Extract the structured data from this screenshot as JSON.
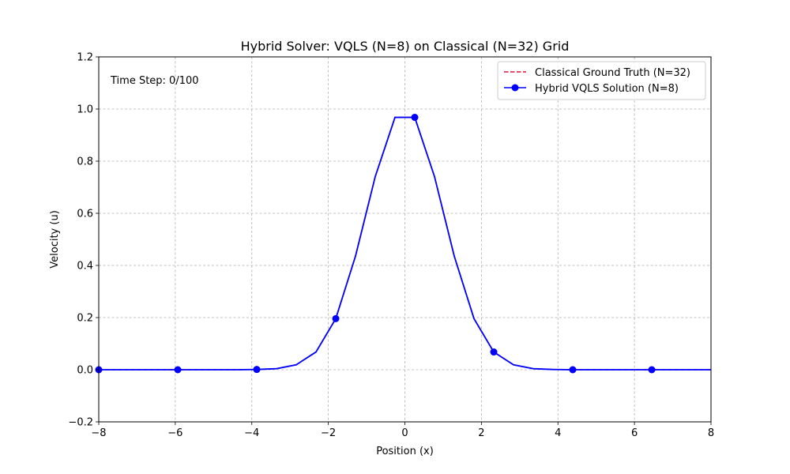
{
  "chart_data": {
    "type": "line",
    "title": "Hybrid Solver: VQLS (N=8) on Classical (N=32) Grid",
    "xlabel": "Position (x)",
    "ylabel": "Velocity (u)",
    "xlim": [
      -8,
      8
    ],
    "ylim": [
      -0.2,
      1.2
    ],
    "xticks": [
      -8,
      -6,
      -4,
      -2,
      0,
      2,
      4,
      6,
      8
    ],
    "xtick_labels": [
      "−8",
      "−6",
      "−4",
      "−2",
      "0",
      "2",
      "4",
      "6",
      "8"
    ],
    "yticks": [
      -0.2,
      0.0,
      0.2,
      0.4,
      0.6,
      0.8,
      1.0,
      1.2
    ],
    "ytick_labels": [
      "−0.2",
      "0.0",
      "0.2",
      "0.4",
      "0.6",
      "0.8",
      "1.0",
      "1.2"
    ],
    "grid": true,
    "legend_position": "top-right",
    "annotation": "Time Step: 0/100",
    "series": [
      {
        "name": "Classical Ground Truth (N=32)",
        "color": "#dc143c",
        "style": "dashed",
        "x": [
          -8.0,
          -7.484,
          -6.968,
          -6.452,
          -5.935,
          -5.419,
          -4.903,
          -4.387,
          -3.871,
          -3.355,
          -2.839,
          -2.323,
          -1.806,
          -1.29,
          -0.774,
          -0.258,
          0.258,
          0.774,
          1.29,
          1.806,
          2.323,
          2.839,
          3.355,
          3.871,
          4.387,
          4.903,
          5.419,
          5.935,
          6.452,
          6.968,
          7.484,
          8.0
        ],
        "y": [
          0.0,
          0.0,
          0.0,
          0.0,
          0.0,
          0.0,
          0.0,
          0.0,
          0.001,
          0.004,
          0.019,
          0.068,
          0.196,
          0.436,
          0.741,
          0.968,
          0.968,
          0.741,
          0.436,
          0.196,
          0.068,
          0.019,
          0.004,
          0.001,
          0.0,
          0.0,
          0.0,
          0.0,
          0.0,
          0.0,
          0.0,
          0.0
        ]
      },
      {
        "name": "Hybrid VQLS Solution (N=8)",
        "color": "#0000ff",
        "style": "solid-marker",
        "x": [
          -8.0,
          -7.484,
          -6.968,
          -6.452,
          -5.935,
          -5.419,
          -4.903,
          -4.387,
          -3.871,
          -3.355,
          -2.839,
          -2.323,
          -1.806,
          -1.29,
          -0.774,
          -0.258,
          0.258,
          0.774,
          1.29,
          1.806,
          2.323,
          2.839,
          3.355,
          3.871,
          4.387,
          4.903,
          5.419,
          5.935,
          6.452,
          6.968,
          7.484,
          8.0
        ],
        "y": [
          0.0,
          0.0,
          0.0,
          0.0,
          0.0,
          0.0,
          0.0,
          0.0,
          0.001,
          0.004,
          0.019,
          0.068,
          0.196,
          0.436,
          0.741,
          0.968,
          0.968,
          0.741,
          0.436,
          0.196,
          0.068,
          0.019,
          0.004,
          0.001,
          0.0,
          0.0,
          0.0,
          0.0,
          0.0,
          0.0,
          0.0,
          0.0
        ],
        "marker_x": [
          -8.0,
          -5.935,
          -3.871,
          -1.806,
          0.258,
          2.323,
          4.387,
          6.452
        ],
        "marker_y": [
          0.0,
          0.0,
          0.001,
          0.196,
          0.968,
          0.068,
          0.0,
          0.0
        ]
      }
    ]
  }
}
